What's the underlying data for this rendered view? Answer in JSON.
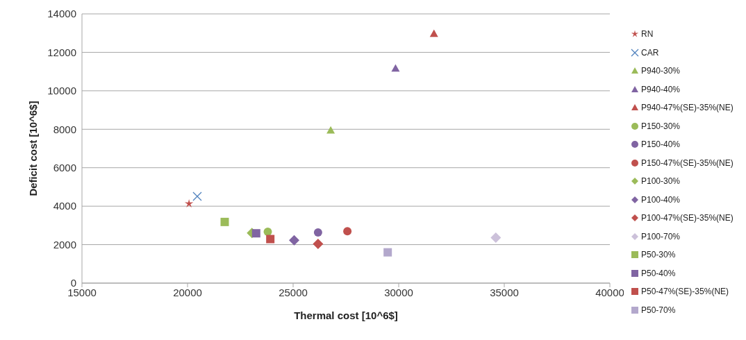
{
  "chart_data": {
    "type": "scatter",
    "xlabel": "Thermal cost [10^6$]",
    "ylabel": "Deficit cost [10^6$]",
    "xlim": [
      15000,
      40000
    ],
    "xticks": [
      15000,
      20000,
      25000,
      30000,
      35000,
      40000
    ],
    "ylim": [
      0,
      14000
    ],
    "yticks": [
      0,
      2000,
      4000,
      6000,
      8000,
      10000,
      12000,
      14000
    ],
    "grid": "y",
    "legend": "right",
    "series": [
      {
        "name": "RN",
        "color": "#c0504d",
        "marker": "star",
        "x": [
          20070
        ],
        "values": [
          4130
        ]
      },
      {
        "name": "CAR",
        "color": "#4f81bd",
        "marker": "cross",
        "x": [
          20460
        ],
        "values": [
          4510
        ]
      },
      {
        "name": "P940-30%",
        "color": "#9bbb59",
        "marker": "triangle",
        "x": [
          26780
        ],
        "values": [
          7950
        ]
      },
      {
        "name": "P940-40%",
        "color": "#8064a2",
        "marker": "triangle",
        "x": [
          29850
        ],
        "values": [
          11170
        ]
      },
      {
        "name": "P940-47%(SE)-35%(NE)",
        "color": "#c0504d",
        "marker": "triangle",
        "x": [
          31670
        ],
        "values": [
          12970
        ]
      },
      {
        "name": "P150-30%",
        "color": "#9bbb59",
        "marker": "circle",
        "x": [
          23800
        ],
        "values": [
          2670
        ]
      },
      {
        "name": "P150-40%",
        "color": "#8064a2",
        "marker": "circle",
        "x": [
          26180
        ],
        "values": [
          2630
        ]
      },
      {
        "name": "P150-47%(SE)-35%(NE)",
        "color": "#c0504d",
        "marker": "circle",
        "x": [
          27570
        ],
        "values": [
          2700
        ]
      },
      {
        "name": "P100-30%",
        "color": "#9bbb59",
        "marker": "diamond",
        "x": [
          23050
        ],
        "values": [
          2610
        ]
      },
      {
        "name": "P100-40%",
        "color": "#8064a2",
        "marker": "diamond",
        "x": [
          25050
        ],
        "values": [
          2230
        ]
      },
      {
        "name": "P100-47%(SE)-35%(NE)",
        "color": "#c0504d",
        "marker": "diamond",
        "x": [
          26180
        ],
        "values": [
          2040
        ]
      },
      {
        "name": "P100-70%",
        "color": "#ccc1da",
        "marker": "diamond",
        "x": [
          34600
        ],
        "values": [
          2360
        ]
      },
      {
        "name": "P50-30%",
        "color": "#9bbb59",
        "marker": "square",
        "x": [
          21760
        ],
        "values": [
          3180
        ]
      },
      {
        "name": "P50-40%",
        "color": "#8064a2",
        "marker": "square",
        "x": [
          23250
        ],
        "values": [
          2590
        ]
      },
      {
        "name": "P50-47%(SE)-35%(NE)",
        "color": "#c0504d",
        "marker": "square",
        "x": [
          23920
        ],
        "values": [
          2290
        ]
      },
      {
        "name": "P50-70%",
        "color": "#b3a8cc",
        "marker": "square",
        "x": [
          29480
        ],
        "values": [
          1600
        ]
      }
    ]
  }
}
